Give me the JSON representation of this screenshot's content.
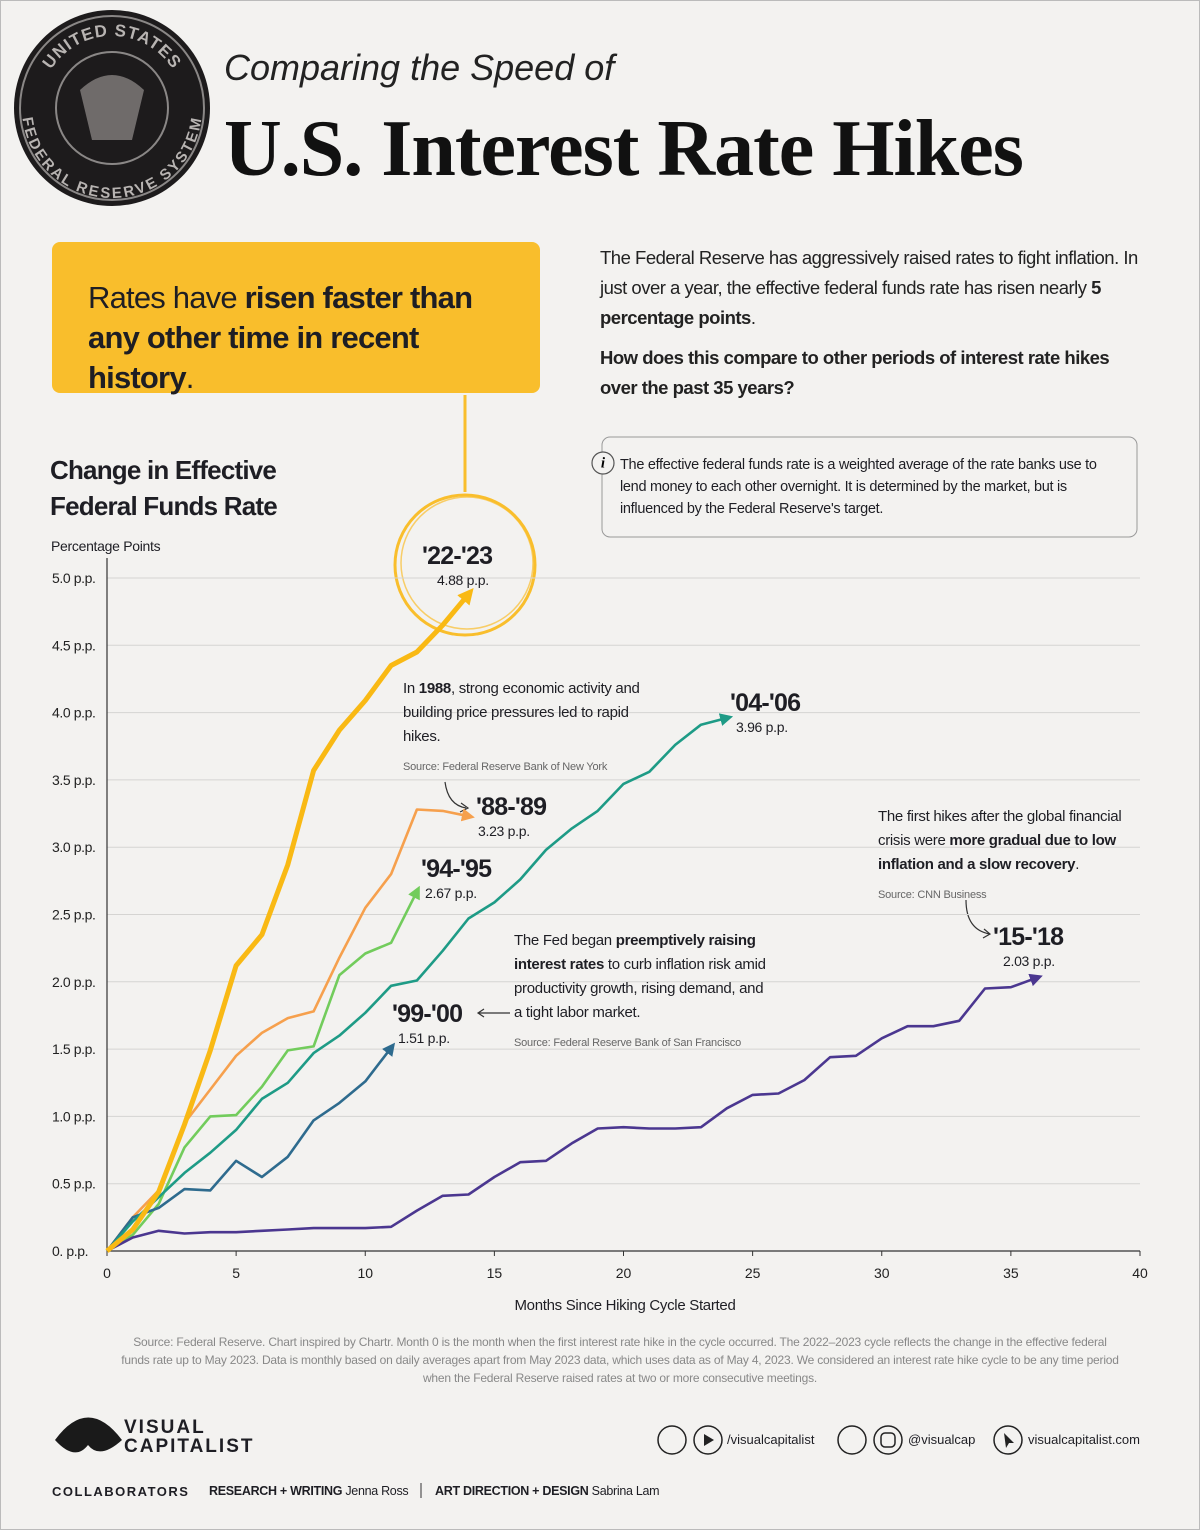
{
  "header": {
    "seal_top": "UNITED STATES",
    "seal_bottom": "FEDERAL RESERVE SYSTEM",
    "kicker": "Comparing the Speed of",
    "title": "U.S. Interest Rate Hikes"
  },
  "callout": [
    "Rates have ",
    "risen faster than any other time in recent history",
    "."
  ],
  "intro": {
    "p1": [
      "The Federal Reserve has aggressively raised rates to fight inflation. In just over a year, the effective federal funds rate has risen nearly ",
      "5 percentage points",
      "."
    ],
    "p2": "How does this compare to other periods of interest rate hikes over the past 35 years?"
  },
  "info": {
    "icon": "i",
    "text": "The effective federal funds rate is a weighted average of the rate banks use to lend money to each other overnight. It is determined by the market, but is influenced by the Federal Reserve's target."
  },
  "chart_data": {
    "type": "line",
    "title": "Change in Effective Federal Funds Rate",
    "subtitle": "Percentage Points",
    "xlabel": "Months Since Hiking Cycle Started",
    "xlim": [
      0,
      40
    ],
    "xticks": [
      0,
      5,
      10,
      15,
      20,
      25,
      30,
      35,
      40
    ],
    "ylim": [
      0,
      5
    ],
    "yticks": [
      {
        "value": 0,
        "label": "0. p.p."
      },
      {
        "value": 0.5,
        "label": "0.5 p.p."
      },
      {
        "value": 1,
        "label": "1.0 p.p."
      },
      {
        "value": 1.5,
        "label": "1.5 p.p."
      },
      {
        "value": 2,
        "label": "2.0 p.p."
      },
      {
        "value": 2.5,
        "label": "2.5 p.p."
      },
      {
        "value": 3,
        "label": "3.0 p.p."
      },
      {
        "value": 3.5,
        "label": "3.5 p.p."
      },
      {
        "value": 4,
        "label": "4.0 p.p."
      },
      {
        "value": 4.5,
        "label": "4.5 p.p."
      },
      {
        "value": 5,
        "label": "5.0 p.p."
      }
    ],
    "grid": true,
    "x": [
      0,
      1,
      2,
      3,
      4,
      5,
      6,
      7,
      8,
      9,
      10,
      11,
      12,
      13,
      14,
      15,
      16,
      17,
      18,
      19,
      20,
      21,
      22,
      23,
      24,
      25,
      26,
      27,
      28,
      29,
      30,
      31,
      32,
      33,
      34,
      35,
      36
    ],
    "series": [
      {
        "name": "'88-'89",
        "color": "#f6a04d",
        "value_label": "3.23 p.p.",
        "values": [
          0,
          0.25,
          0.45,
          0.95,
          1.2,
          1.45,
          1.62,
          1.73,
          1.78,
          2.18,
          2.55,
          2.8,
          3.28,
          3.27,
          3.23,
          null,
          null,
          null,
          null,
          null,
          null,
          null,
          null,
          null,
          null,
          null,
          null,
          null,
          null,
          null,
          null,
          null,
          null,
          null,
          null,
          null,
          null
        ]
      },
      {
        "name": "'94-'95",
        "color": "#72cc5c",
        "value_label": "2.67 p.p.",
        "values": [
          0,
          0.12,
          0.35,
          0.77,
          1.0,
          1.01,
          1.22,
          1.49,
          1.52,
          2.05,
          2.21,
          2.29,
          2.67,
          null,
          null,
          null,
          null,
          null,
          null,
          null,
          null,
          null,
          null,
          null,
          null,
          null,
          null,
          null,
          null,
          null,
          null,
          null,
          null,
          null,
          null,
          null,
          null
        ]
      },
      {
        "name": "'99-'00",
        "color": "#2e6b8e",
        "value_label": "1.51 p.p.",
        "values": [
          0,
          0.25,
          0.32,
          0.46,
          0.45,
          0.67,
          0.55,
          0.7,
          0.97,
          1.1,
          1.26,
          1.51,
          null,
          null,
          null,
          null,
          null,
          null,
          null,
          null,
          null,
          null,
          null,
          null,
          null,
          null,
          null,
          null,
          null,
          null,
          null,
          null,
          null,
          null,
          null,
          null,
          null
        ]
      },
      {
        "name": "'04-'06",
        "color": "#1e9b86",
        "value_label": "3.96 p.p.",
        "values": [
          0,
          0.22,
          0.4,
          0.58,
          0.73,
          0.9,
          1.13,
          1.25,
          1.47,
          1.6,
          1.77,
          1.97,
          2.01,
          2.23,
          2.47,
          2.59,
          2.76,
          2.98,
          3.14,
          3.27,
          3.47,
          3.56,
          3.76,
          3.91,
          3.96,
          null,
          null,
          null,
          null,
          null,
          null,
          null,
          null,
          null,
          null,
          null,
          null
        ]
      },
      {
        "name": "'15-'18",
        "color": "#4b3790",
        "value_label": "2.03 p.p.",
        "values": [
          0,
          0.1,
          0.15,
          0.13,
          0.14,
          0.14,
          0.15,
          0.16,
          0.17,
          0.17,
          0.17,
          0.18,
          0.3,
          0.41,
          0.42,
          0.55,
          0.66,
          0.67,
          0.8,
          0.91,
          0.92,
          0.91,
          0.91,
          0.92,
          1.06,
          1.16,
          1.17,
          1.27,
          1.44,
          1.45,
          1.58,
          1.67,
          1.67,
          1.71,
          1.95,
          1.96,
          2.03
        ]
      },
      {
        "name": "'22-'23",
        "color": "#f9b914",
        "value_label": "4.88 p.p.",
        "values": [
          0,
          0.16,
          0.44,
          0.94,
          1.49,
          2.12,
          2.35,
          2.87,
          3.57,
          3.87,
          4.09,
          4.35,
          4.45,
          4.65,
          4.88,
          null,
          null,
          null,
          null,
          null,
          null,
          null,
          null,
          null,
          null,
          null,
          null,
          null,
          null,
          null,
          null,
          null,
          null,
          null,
          null,
          null,
          null
        ]
      }
    ],
    "annotations": [
      {
        "parts": [
          "In ",
          "1988",
          ", strong economic activity and building price pressures led to rapid hikes."
        ],
        "source": "Source: Federal Reserve Bank of New York"
      },
      {
        "parts": [
          "The Fed began ",
          "preemptively raising interest rates",
          " to curb inflation risk amid productivity growth, rising demand, and a tight labor market."
        ],
        "source": "Source: Federal Reserve Bank of San Francisco"
      },
      {
        "parts": [
          "The first hikes after the global financial crisis were ",
          "more gradual due to low inflation and a slow recovery",
          "."
        ],
        "source": "Source: CNN Business"
      }
    ]
  },
  "footnote": "Source: Federal Reserve. Chart inspired by Chartr. Month 0 is the month when the first interest rate hike in the cycle occurred. The 2022–2023 cycle reflects the change in the effective federal funds rate up to May 2023. Data is monthly based on daily averages apart from May 2023 data, which uses data as of May 4, 2023. We considered an interest rate hike cycle to be any time period when the Federal Reserve raised rates at two or more consecutive meetings.",
  "footer": {
    "logo": [
      "VISUAL",
      "CAPITALIST"
    ],
    "social": [
      "/visualcapitalist",
      "@visualcap",
      "visualcapitalist.com"
    ],
    "collaborators": "COLLABORATORS",
    "credits": [
      {
        "role": "RESEARCH + WRITING",
        "name": "Jenna Ross"
      },
      {
        "role": "ART DIRECTION + DESIGN",
        "name": "Sabrina Lam"
      }
    ]
  }
}
